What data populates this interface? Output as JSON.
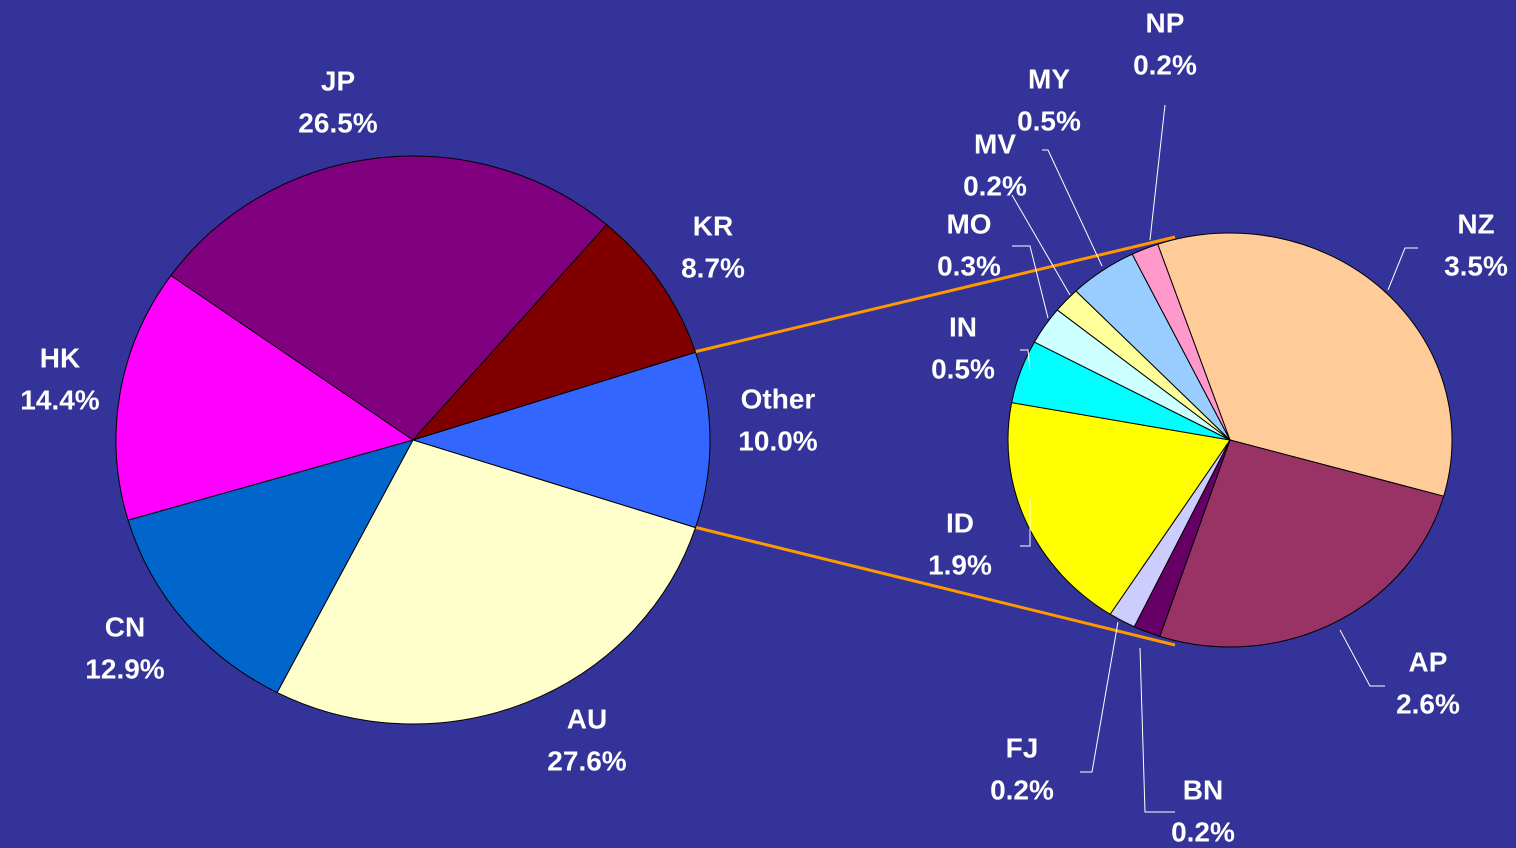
{
  "chart_data": [
    {
      "type": "pie",
      "categories": [
        "Other",
        "AU",
        "CN",
        "HK",
        "JP",
        "KR"
      ],
      "values": [
        10.0,
        27.6,
        12.9,
        14.4,
        26.5,
        8.7
      ],
      "value_labels": [
        "10.0%",
        "27.6%",
        "12.9%",
        "14.4%",
        "26.5%",
        "8.7%"
      ],
      "colors": [
        "#3366ff",
        "#ffffcc",
        "#0066cc",
        "#ff00ff",
        "#800080",
        "#800000"
      ]
    },
    {
      "type": "pie",
      "categories": [
        "NZ",
        "AP",
        "BN",
        "FJ",
        "ID",
        "IN",
        "MO",
        "MV",
        "MY",
        "NP"
      ],
      "values": [
        3.5,
        2.6,
        0.2,
        0.2,
        1.9,
        0.5,
        0.3,
        0.2,
        0.5,
        0.2
      ],
      "value_labels": [
        "3.5%",
        "2.6%",
        "0.2%",
        "0.2%",
        "1.9%",
        "0.5%",
        "0.3%",
        "0.2%",
        "0.5%",
        "0.2%"
      ],
      "colors": [
        "#ffcc99",
        "#993366",
        "#660066",
        "#ccccff",
        "#ffff00",
        "#00ffff",
        "#ccffff",
        "#ffff99",
        "#99ccff",
        "#ff99cc"
      ]
    }
  ]
}
